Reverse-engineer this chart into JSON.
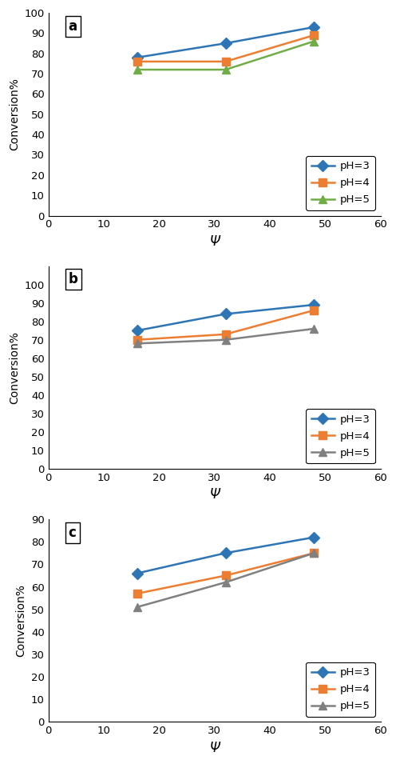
{
  "subplots": [
    {
      "label": "a",
      "x": [
        16,
        32,
        48
      ],
      "series": [
        {
          "name": "pH=3",
          "color": "#2e75b6",
          "marker": "D",
          "y": [
            78,
            85,
            93
          ]
        },
        {
          "name": "pH=4",
          "color": "#ed7d31",
          "marker": "s",
          "y": [
            76,
            76,
            89
          ]
        },
        {
          "name": "pH=5",
          "color": "#70ad47",
          "marker": "^",
          "y": [
            72,
            72,
            86
          ]
        }
      ],
      "ylim": [
        0,
        100
      ],
      "yticks": [
        0,
        10,
        20,
        30,
        40,
        50,
        60,
        70,
        80,
        90,
        100
      ],
      "xlim": [
        0,
        60
      ],
      "xticks": [
        0,
        10,
        20,
        30,
        40,
        50,
        60
      ]
    },
    {
      "label": "b",
      "x": [
        16,
        32,
        48
      ],
      "series": [
        {
          "name": "pH=3",
          "color": "#2e75b6",
          "marker": "D",
          "y": [
            75,
            84,
            89
          ]
        },
        {
          "name": "pH=4",
          "color": "#ed7d31",
          "marker": "s",
          "y": [
            70,
            73,
            86
          ]
        },
        {
          "name": "pH=5",
          "color": "#808080",
          "marker": "^",
          "y": [
            68,
            70,
            76
          ]
        }
      ],
      "ylim": [
        0,
        110
      ],
      "yticks": [
        0,
        10,
        20,
        30,
        40,
        50,
        60,
        70,
        80,
        90,
        100
      ],
      "xlim": [
        0,
        60
      ],
      "xticks": [
        0,
        10,
        20,
        30,
        40,
        50,
        60
      ]
    },
    {
      "label": "c",
      "x": [
        16,
        32,
        48
      ],
      "series": [
        {
          "name": "pH=3",
          "color": "#2e75b6",
          "marker": "D",
          "y": [
            66,
            75,
            82
          ]
        },
        {
          "name": "pH=4",
          "color": "#ed7d31",
          "marker": "s",
          "y": [
            57,
            65,
            75
          ]
        },
        {
          "name": "pH=5",
          "color": "#808080",
          "marker": "^",
          "y": [
            51,
            62,
            75
          ]
        }
      ],
      "ylim": [
        0,
        90
      ],
      "yticks": [
        0,
        10,
        20,
        30,
        40,
        50,
        60,
        70,
        80,
        90
      ],
      "xlim": [
        0,
        60
      ],
      "xticks": [
        0,
        10,
        20,
        30,
        40,
        50,
        60
      ]
    }
  ],
  "xlabel": "Ψ",
  "ylabel": "Conversion%",
  "background_color": "#ffffff",
  "linewidth": 1.8,
  "markersize": 7
}
